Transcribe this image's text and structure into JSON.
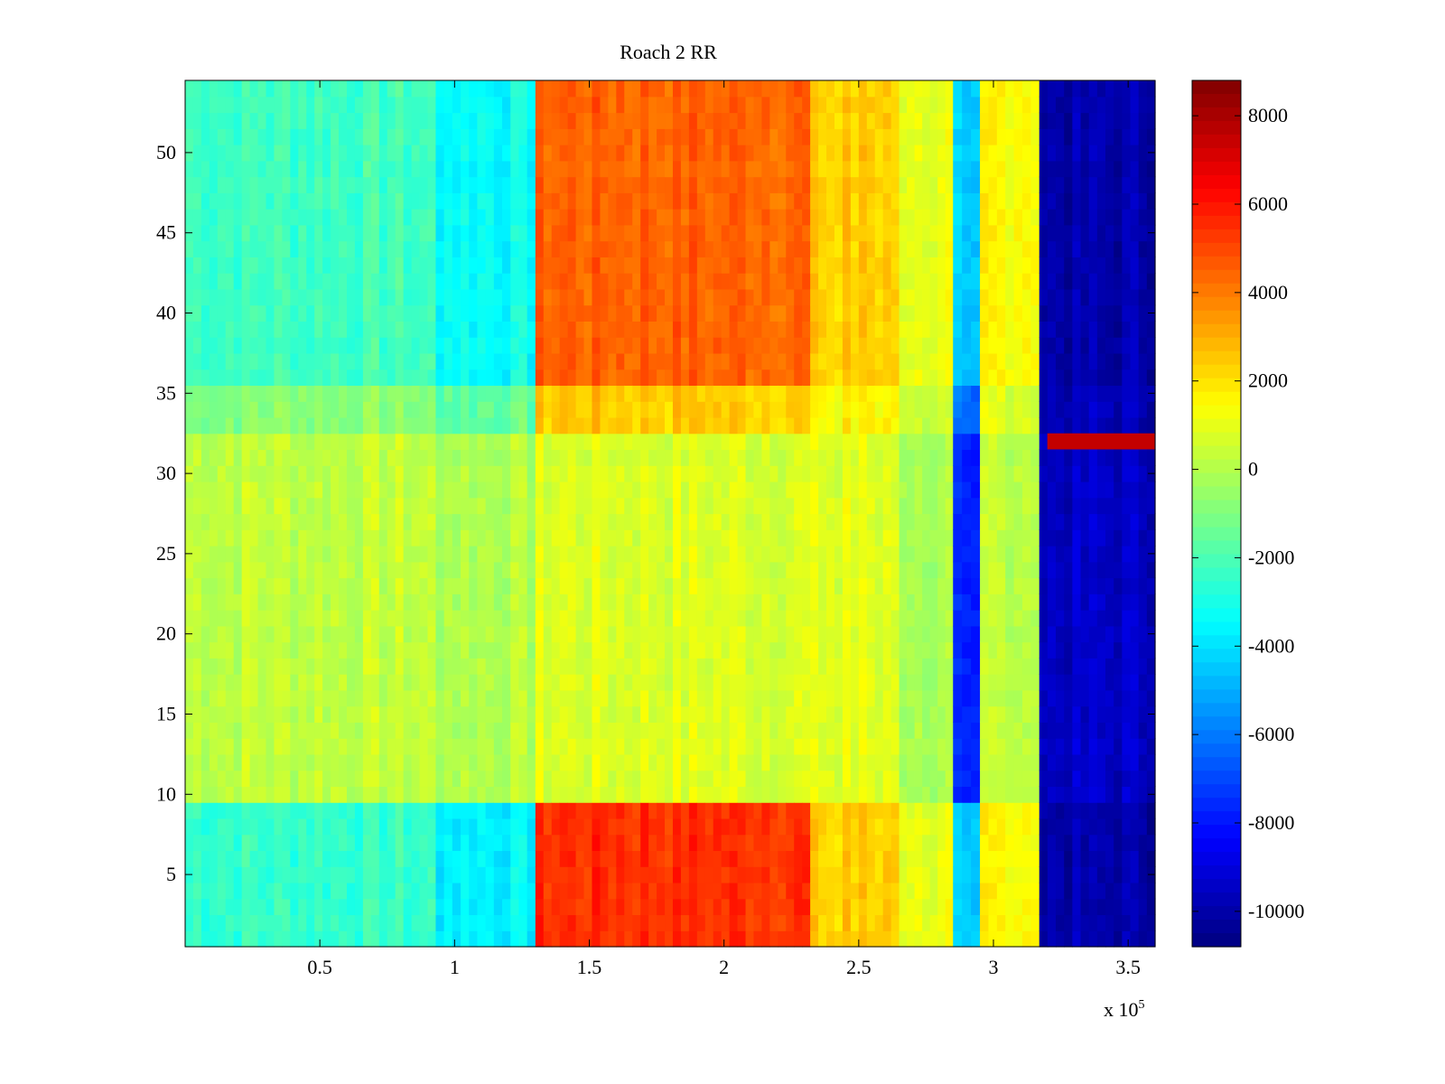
{
  "chart_data": {
    "type": "heatmap",
    "title": "Roach 2 RR",
    "xlabel": "",
    "ylabel": "",
    "x_exponent_label": "x 10",
    "x_exponent_power": "5",
    "xlim": [
      0,
      3.6
    ],
    "ylim": [
      0.5,
      54.5
    ],
    "x_ticks": [
      0.5,
      1,
      1.5,
      2,
      2.5,
      3,
      3.5
    ],
    "x_tick_labels": [
      "0.5",
      "1",
      "1.5",
      "2",
      "2.5",
      "3",
      "3.5"
    ],
    "y_ticks": [
      5,
      10,
      15,
      20,
      25,
      30,
      35,
      40,
      45,
      50
    ],
    "y_tick_labels": [
      "5",
      "10",
      "15",
      "20",
      "25",
      "30",
      "35",
      "40",
      "45",
      "50"
    ],
    "rows": 54,
    "colormap": "jet",
    "colorbar": {
      "clim": [
        -10800,
        8800
      ],
      "ticks": [
        8000,
        6000,
        4000,
        2000,
        0,
        -2000,
        -4000,
        -6000,
        -8000,
        -10000
      ],
      "tick_labels": [
        "8000",
        "6000",
        "4000",
        "2000",
        "0",
        "-2000",
        "-4000",
        "-6000",
        "-8000",
        "-10000"
      ]
    },
    "column_bands": [
      {
        "x_start": 0.0,
        "x_end": 0.93,
        "top_rows_value": -2200,
        "mid_rows_value": 300,
        "bottom_rows_value": -2400
      },
      {
        "x_start": 0.93,
        "x_end": 1.3,
        "top_rows_value": -3300,
        "mid_rows_value": 0,
        "bottom_rows_value": -3600
      },
      {
        "x_start": 1.3,
        "x_end": 2.32,
        "top_rows_value": 4500,
        "mid_rows_value": 800,
        "bottom_rows_value": 5500
      },
      {
        "x_start": 2.32,
        "x_end": 2.65,
        "top_rows_value": 2400,
        "mid_rows_value": 900,
        "bottom_rows_value": 2400
      },
      {
        "x_start": 2.65,
        "x_end": 2.85,
        "top_rows_value": 1200,
        "mid_rows_value": 0,
        "bottom_rows_value": 1200
      },
      {
        "x_start": 2.85,
        "x_end": 2.95,
        "top_rows_value": -4500,
        "mid_rows_value": -7800,
        "bottom_rows_value": -4500
      },
      {
        "x_start": 2.95,
        "x_end": 3.17,
        "top_rows_value": 1600,
        "mid_rows_value": 300,
        "bottom_rows_value": 1600
      },
      {
        "x_start": 3.17,
        "x_end": 3.6,
        "top_rows_value": -10000,
        "mid_rows_value": -9500,
        "bottom_rows_value": -10000
      }
    ],
    "annotated_row": {
      "y": 32,
      "x_start": 3.2,
      "x_end": 3.6,
      "value": 7500
    }
  }
}
